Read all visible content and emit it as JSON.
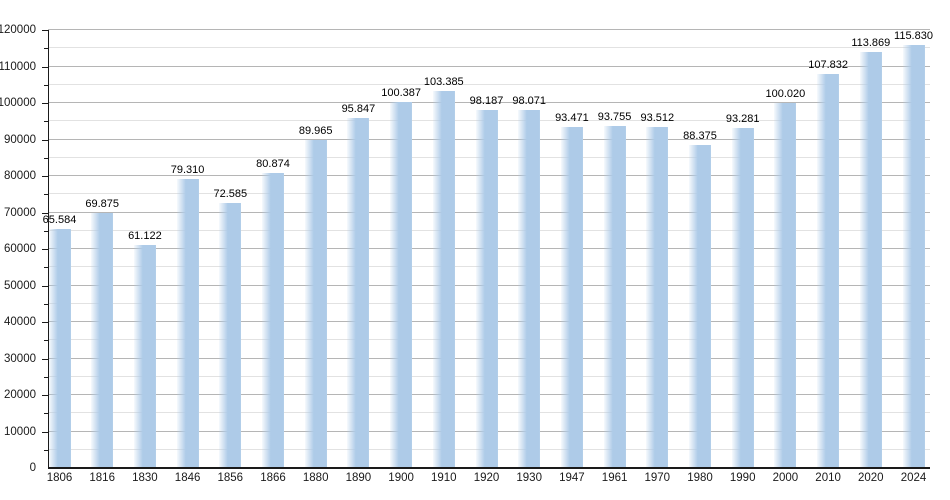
{
  "chart_data": {
    "type": "bar",
    "title": "",
    "xlabel": "",
    "ylabel": "",
    "categories": [
      "1806",
      "1816",
      "1830",
      "1846",
      "1856",
      "1866",
      "1880",
      "1890",
      "1900",
      "1910",
      "1920",
      "1930",
      "1947",
      "1961",
      "1970",
      "1980",
      "1990",
      "2000",
      "2010",
      "2020",
      "2024"
    ],
    "values": [
      65584,
      69875,
      61122,
      79310,
      72585,
      80874,
      89965,
      95847,
      100387,
      103385,
      98187,
      98071,
      93471,
      93755,
      93512,
      88375,
      93281,
      100020,
      107832,
      113869,
      115830
    ],
    "value_labels": [
      "65.584",
      "69.875",
      "61.122",
      "79.310",
      "72.585",
      "80.874",
      "89.965",
      "95.847",
      "100.387",
      "103.385",
      "98.187",
      "98.071",
      "93.471",
      "93.755",
      "93.512",
      "88.375",
      "93.281",
      "100.020",
      "107.832",
      "113.869",
      "115.830"
    ],
    "ylim": [
      0,
      120000
    ],
    "y_major_step": 10000,
    "y_minor_step": 5000,
    "y_tick_labels": [
      "0",
      "10000",
      "20000",
      "30000",
      "40000",
      "50000",
      "60000",
      "70000",
      "80000",
      "90000",
      "100000",
      "110000",
      "120000"
    ],
    "grid": true,
    "legend_position": "none",
    "colors": {
      "bar": "#aecbe8",
      "bar_edge_light": "#e9f1f9",
      "grid_major": "#b5b5b5",
      "grid_minor": "#e2e2e2",
      "axis": "#1a1a1a",
      "text": "#000000",
      "background": "#ffffff"
    }
  }
}
